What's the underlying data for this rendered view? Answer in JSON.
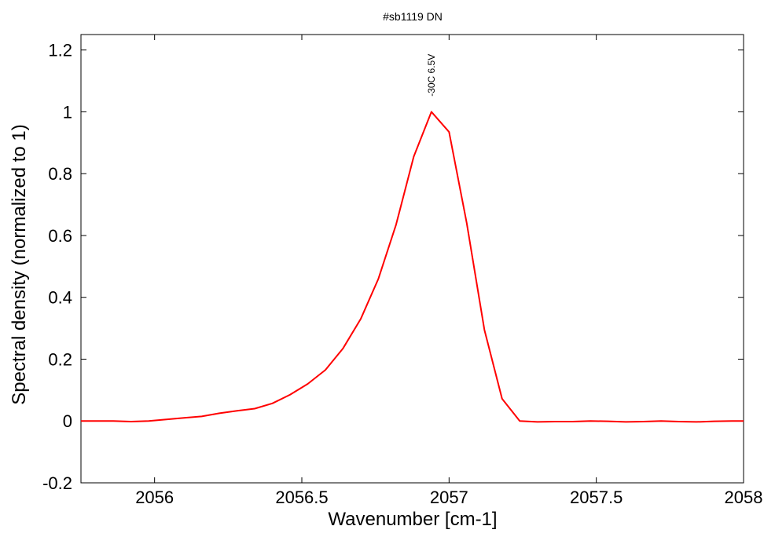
{
  "chart_data": {
    "type": "line",
    "title": "#sb1119 DN",
    "xlabel": "Wavenumber [cm-1]",
    "ylabel": "Spectral density (normalized to 1)",
    "xlim": [
      2055.75,
      2058
    ],
    "ylim": [
      -0.2,
      1.25
    ],
    "xticks": [
      2056,
      2056.5,
      2057,
      2057.5,
      2058
    ],
    "xtick_labels": [
      "2056",
      "2056.5",
      "2057",
      "2057.5",
      "2058"
    ],
    "yticks": [
      -0.2,
      0,
      0.2,
      0.4,
      0.6,
      0.8,
      1,
      1.2
    ],
    "ytick_labels": [
      "-0.2",
      "0",
      "0.2",
      "0.4",
      "0.6",
      "0.8",
      "1",
      "1.2"
    ],
    "grid": false,
    "annotations": [
      {
        "text": "-30C 6.5V",
        "x": 2056.94,
        "y": 1.05
      }
    ],
    "series": [
      {
        "color": "#ff0000",
        "x": [
          2055.75,
          2055.8,
          2055.86,
          2055.92,
          2055.98,
          2056.04,
          2056.1,
          2056.16,
          2056.22,
          2056.28,
          2056.34,
          2056.4,
          2056.46,
          2056.52,
          2056.58,
          2056.64,
          2056.7,
          2056.76,
          2056.82,
          2056.88,
          2056.94,
          2057.0,
          2057.06,
          2057.12,
          2057.18,
          2057.24,
          2057.3,
          2057.36,
          2057.42,
          2057.48,
          2057.54,
          2057.6,
          2057.66,
          2057.72,
          2057.78,
          2057.84,
          2057.9,
          2057.96,
          2058.0
        ],
        "y": [
          0.0,
          0.0,
          0.0,
          -0.002,
          0.0,
          0.005,
          0.01,
          0.015,
          0.025,
          0.033,
          0.04,
          0.057,
          0.085,
          0.12,
          0.165,
          0.235,
          0.33,
          0.46,
          0.635,
          0.855,
          1.0,
          0.935,
          0.64,
          0.295,
          0.072,
          0.0,
          -0.003,
          -0.002,
          -0.002,
          0.0,
          -0.001,
          -0.003,
          -0.002,
          0.0,
          -0.002,
          -0.003,
          -0.001,
          0.0,
          0.0
        ]
      }
    ]
  }
}
